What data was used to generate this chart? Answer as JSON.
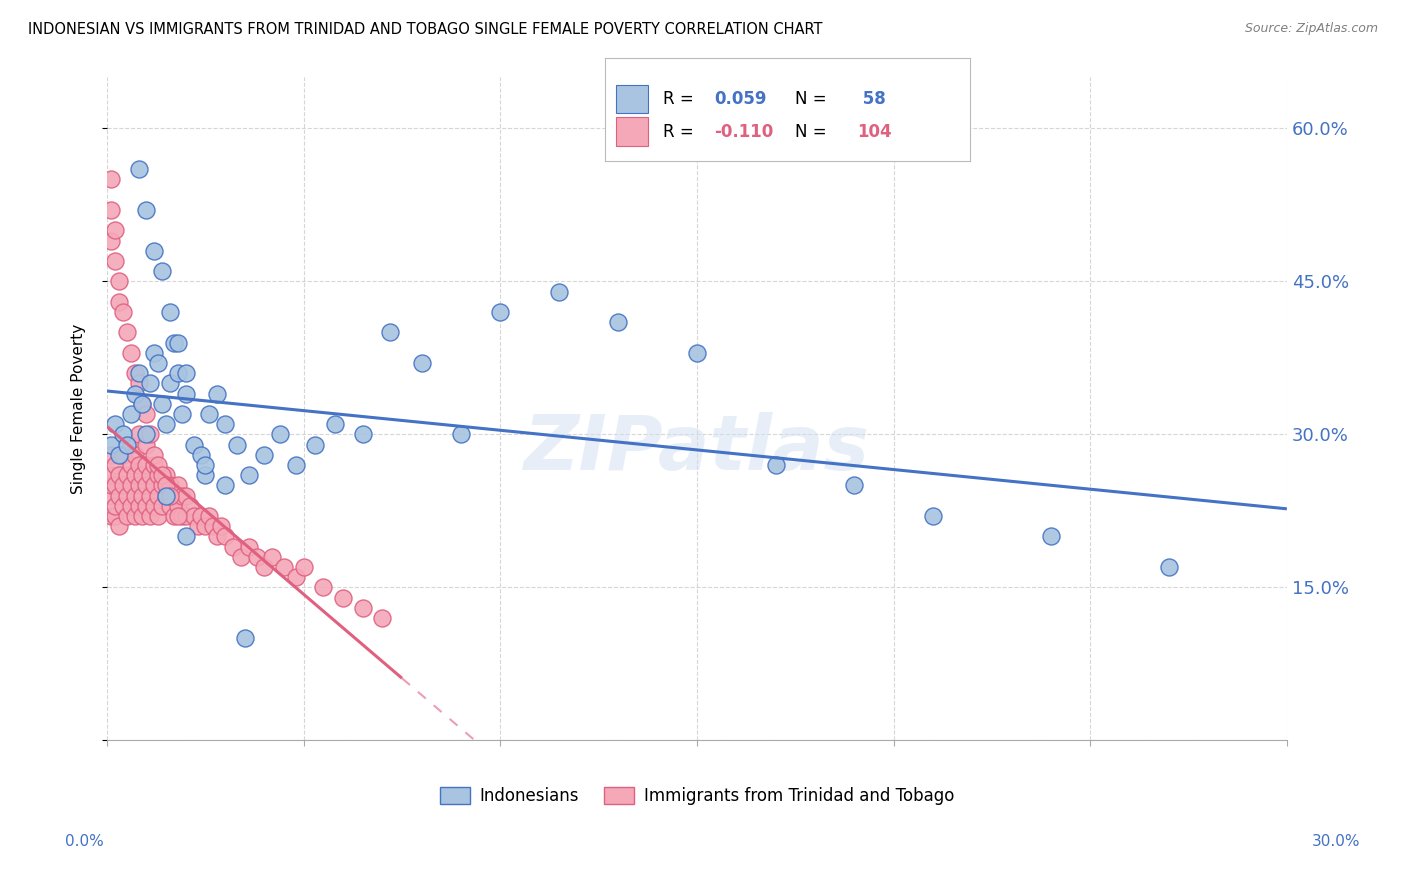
{
  "title": "INDONESIAN VS IMMIGRANTS FROM TRINIDAD AND TOBAGO SINGLE FEMALE POVERTY CORRELATION CHART",
  "source": "Source: ZipAtlas.com",
  "ylabel": "Single Female Poverty",
  "yticks": [
    0.0,
    0.15,
    0.3,
    0.45,
    0.6
  ],
  "ytick_labels": [
    "",
    "15.0%",
    "30.0%",
    "45.0%",
    "60.0%"
  ],
  "legend_label1": "Indonesians",
  "legend_label2": "Immigrants from Trinidad and Tobago",
  "R1": 0.059,
  "N1": 58,
  "R2": -0.11,
  "N2": 104,
  "blue_color": "#A8C4E0",
  "pink_color": "#F4A8B8",
  "blue_dark": "#4472C4",
  "pink_dark": "#E06080",
  "xlim": [
    0.0,
    0.3
  ],
  "ylim": [
    0.0,
    0.65
  ],
  "indonesian_x": [
    0.001,
    0.002,
    0.003,
    0.004,
    0.005,
    0.006,
    0.007,
    0.008,
    0.009,
    0.01,
    0.011,
    0.012,
    0.013,
    0.014,
    0.015,
    0.016,
    0.017,
    0.018,
    0.019,
    0.02,
    0.022,
    0.024,
    0.026,
    0.028,
    0.03,
    0.033,
    0.036,
    0.04,
    0.044,
    0.048,
    0.053,
    0.058,
    0.065,
    0.072,
    0.08,
    0.09,
    0.1,
    0.115,
    0.13,
    0.15,
    0.17,
    0.19,
    0.21,
    0.24,
    0.27,
    0.008,
    0.01,
    0.012,
    0.014,
    0.016,
    0.018,
    0.02,
    0.025,
    0.03,
    0.035,
    0.015,
    0.02,
    0.025
  ],
  "indonesian_y": [
    0.29,
    0.31,
    0.28,
    0.3,
    0.29,
    0.32,
    0.34,
    0.36,
    0.33,
    0.3,
    0.35,
    0.38,
    0.37,
    0.33,
    0.31,
    0.35,
    0.39,
    0.36,
    0.32,
    0.34,
    0.29,
    0.28,
    0.32,
    0.34,
    0.31,
    0.29,
    0.26,
    0.28,
    0.3,
    0.27,
    0.29,
    0.31,
    0.3,
    0.4,
    0.37,
    0.3,
    0.42,
    0.44,
    0.41,
    0.38,
    0.27,
    0.25,
    0.22,
    0.2,
    0.17,
    0.56,
    0.52,
    0.48,
    0.46,
    0.42,
    0.39,
    0.36,
    0.26,
    0.25,
    0.1,
    0.24,
    0.2,
    0.27
  ],
  "trinidadian_x": [
    0.001,
    0.001,
    0.001,
    0.001,
    0.001,
    0.002,
    0.002,
    0.002,
    0.002,
    0.003,
    0.003,
    0.003,
    0.004,
    0.004,
    0.004,
    0.005,
    0.005,
    0.005,
    0.006,
    0.006,
    0.006,
    0.006,
    0.007,
    0.007,
    0.007,
    0.007,
    0.008,
    0.008,
    0.008,
    0.008,
    0.009,
    0.009,
    0.009,
    0.01,
    0.01,
    0.01,
    0.01,
    0.011,
    0.011,
    0.011,
    0.012,
    0.012,
    0.012,
    0.013,
    0.013,
    0.013,
    0.014,
    0.014,
    0.015,
    0.015,
    0.016,
    0.016,
    0.017,
    0.017,
    0.018,
    0.018,
    0.019,
    0.019,
    0.02,
    0.02,
    0.021,
    0.022,
    0.023,
    0.024,
    0.025,
    0.026,
    0.027,
    0.028,
    0.029,
    0.03,
    0.032,
    0.034,
    0.036,
    0.038,
    0.04,
    0.042,
    0.045,
    0.048,
    0.05,
    0.055,
    0.06,
    0.065,
    0.07,
    0.001,
    0.001,
    0.001,
    0.002,
    0.002,
    0.003,
    0.003,
    0.004,
    0.005,
    0.006,
    0.007,
    0.008,
    0.009,
    0.01,
    0.011,
    0.012,
    0.013,
    0.014,
    0.015,
    0.016,
    0.018
  ],
  "trinidadian_y": [
    0.22,
    0.24,
    0.25,
    0.26,
    0.28,
    0.22,
    0.25,
    0.27,
    0.23,
    0.24,
    0.26,
    0.21,
    0.23,
    0.25,
    0.28,
    0.24,
    0.22,
    0.26,
    0.25,
    0.27,
    0.23,
    0.29,
    0.24,
    0.26,
    0.28,
    0.22,
    0.25,
    0.27,
    0.23,
    0.3,
    0.24,
    0.26,
    0.22,
    0.25,
    0.27,
    0.23,
    0.29,
    0.24,
    0.26,
    0.22,
    0.25,
    0.27,
    0.23,
    0.24,
    0.26,
    0.22,
    0.25,
    0.23,
    0.24,
    0.26,
    0.23,
    0.25,
    0.22,
    0.24,
    0.23,
    0.25,
    0.22,
    0.24,
    0.22,
    0.24,
    0.23,
    0.22,
    0.21,
    0.22,
    0.21,
    0.22,
    0.21,
    0.2,
    0.21,
    0.2,
    0.19,
    0.18,
    0.19,
    0.18,
    0.17,
    0.18,
    0.17,
    0.16,
    0.17,
    0.15,
    0.14,
    0.13,
    0.12,
    0.55,
    0.52,
    0.49,
    0.47,
    0.5,
    0.45,
    0.43,
    0.42,
    0.4,
    0.38,
    0.36,
    0.35,
    0.33,
    0.32,
    0.3,
    0.28,
    0.27,
    0.26,
    0.25,
    0.24,
    0.22
  ]
}
